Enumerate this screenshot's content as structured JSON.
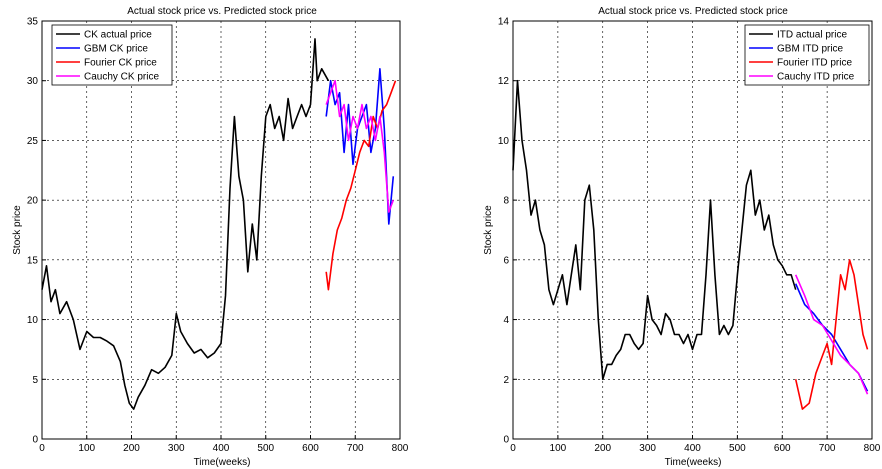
{
  "chart_data": [
    {
      "type": "line",
      "title": "Actual stock price vs. Predicted stock price",
      "xlabel": "Time(weeks)",
      "ylabel": "Stock price",
      "xlim": [
        0,
        800
      ],
      "ylim": [
        0,
        35
      ],
      "xticks": [
        "0",
        "100",
        "200",
        "300",
        "400",
        "500",
        "600",
        "700",
        "800"
      ],
      "yticks": [
        "0",
        "5",
        "10",
        "15",
        "20",
        "25",
        "30",
        "35"
      ],
      "grid": true,
      "legend_position": "top-left",
      "series": [
        {
          "name": "CK actual price",
          "color": "#000000",
          "x": [
            0,
            10,
            20,
            30,
            40,
            55,
            70,
            85,
            100,
            115,
            130,
            145,
            160,
            175,
            185,
            195,
            205,
            215,
            230,
            245,
            260,
            275,
            290,
            300,
            310,
            325,
            340,
            355,
            370,
            385,
            400,
            410,
            420,
            430,
            440,
            450,
            460,
            470,
            480,
            490,
            500,
            510,
            520,
            530,
            540,
            550,
            560,
            570,
            580,
            590,
            600,
            610,
            615,
            625,
            640
          ],
          "y": [
            12.5,
            14.5,
            11.5,
            12.5,
            10.5,
            11.5,
            10,
            7.5,
            9,
            8.5,
            8.5,
            8.2,
            7.8,
            6.5,
            4.5,
            3,
            2.5,
            3.5,
            4.5,
            5.8,
            5.5,
            6,
            7,
            10.5,
            9,
            8,
            7.2,
            7.5,
            6.8,
            7.2,
            8,
            12,
            21,
            27,
            22,
            20,
            14,
            18,
            15,
            22,
            27,
            28,
            26,
            27,
            25,
            28.5,
            26,
            27,
            28,
            27,
            28,
            33.5,
            30,
            31,
            30
          ]
        },
        {
          "name": "GBM CK price",
          "color": "#0000ff",
          "x": [
            635,
            645,
            655,
            665,
            675,
            685,
            695,
            705,
            715,
            725,
            735,
            745,
            755,
            765,
            775,
            785
          ],
          "y": [
            27,
            30,
            28,
            29,
            24,
            28,
            23,
            26,
            27,
            28,
            24,
            26,
            31,
            26,
            18,
            22
          ]
        },
        {
          "name": "Fourier CK price",
          "color": "#ff0000",
          "x": [
            635,
            640,
            650,
            660,
            670,
            680,
            690,
            700,
            710,
            720,
            730,
            740,
            750,
            760,
            770,
            780,
            790
          ],
          "y": [
            14,
            12.5,
            15.5,
            17.5,
            18.5,
            20,
            21,
            22.5,
            24,
            25,
            24.5,
            27,
            26,
            27.5,
            28,
            29,
            30
          ]
        },
        {
          "name": "Cauchy CK price",
          "color": "#ff00ff",
          "x": [
            635,
            645,
            655,
            665,
            675,
            685,
            695,
            705,
            715,
            725,
            735,
            745,
            755,
            765,
            775,
            785
          ],
          "y": [
            28,
            29,
            30,
            27,
            28,
            25,
            27,
            26,
            28,
            26,
            27,
            25,
            27,
            24,
            19,
            20
          ]
        }
      ]
    },
    {
      "type": "line",
      "title": "Actual stock price vs. Predicted stock price",
      "xlabel": "Time(weeks)",
      "ylabel": "Stock price",
      "xlim": [
        0,
        800
      ],
      "ylim": [
        0,
        14
      ],
      "xticks": [
        "0",
        "100",
        "200",
        "300",
        "400",
        "500",
        "600",
        "700",
        "800"
      ],
      "yticks": [
        "0",
        "2",
        "4",
        "6",
        "8",
        "10",
        "12",
        "14"
      ],
      "grid": true,
      "legend_position": "top-right",
      "series": [
        {
          "name": "ITD actual price",
          "color": "#000000",
          "x": [
            0,
            10,
            20,
            30,
            40,
            50,
            60,
            70,
            80,
            90,
            100,
            110,
            120,
            130,
            140,
            150,
            160,
            170,
            180,
            190,
            200,
            210,
            220,
            230,
            240,
            250,
            260,
            270,
            280,
            290,
            300,
            310,
            320,
            330,
            340,
            350,
            360,
            370,
            380,
            390,
            400,
            410,
            420,
            430,
            440,
            450,
            460,
            470,
            480,
            490,
            500,
            510,
            520,
            530,
            540,
            550,
            560,
            570,
            580,
            590,
            600,
            610,
            620,
            630
          ],
          "y": [
            9,
            12,
            10,
            9,
            7.5,
            8,
            7,
            6.5,
            5,
            4.5,
            5,
            5.5,
            4.5,
            5.5,
            6.5,
            5,
            8,
            8.5,
            7,
            4,
            2,
            2.5,
            2.5,
            2.8,
            3,
            3.5,
            3.5,
            3.2,
            3,
            3.2,
            4.8,
            4,
            3.8,
            3.5,
            4.2,
            4,
            3.5,
            3.5,
            3.2,
            3.5,
            3,
            3.5,
            3.5,
            5.5,
            8,
            5.5,
            3.5,
            3.8,
            3.5,
            3.8,
            5.5,
            7,
            8.5,
            9,
            7.5,
            8,
            7,
            7.5,
            6.5,
            6,
            5.8,
            5.5,
            5.5,
            5
          ]
        },
        {
          "name": "GBM ITD price",
          "color": "#0000ff",
          "x": [
            630,
            650,
            670,
            690,
            710,
            730,
            750,
            770,
            790
          ],
          "y": [
            5.2,
            4.5,
            4.2,
            3.8,
            3.5,
            3,
            2.5,
            2.2,
            1.6
          ]
        },
        {
          "name": "Fourier ITD price",
          "color": "#ff0000",
          "x": [
            630,
            645,
            660,
            675,
            690,
            700,
            710,
            720,
            730,
            740,
            750,
            760,
            770,
            780,
            790
          ],
          "y": [
            2,
            1,
            1.2,
            2.2,
            2.8,
            3.2,
            2.5,
            4,
            5.5,
            5,
            6,
            5.5,
            4.5,
            3.5,
            3
          ]
        },
        {
          "name": "Cauchy ITD price",
          "color": "#ff00ff",
          "x": [
            630,
            650,
            670,
            690,
            710,
            730,
            750,
            770,
            790
          ],
          "y": [
            5.5,
            4.8,
            4,
            3.8,
            3.3,
            2.8,
            2.5,
            2.2,
            1.5
          ]
        }
      ]
    }
  ]
}
